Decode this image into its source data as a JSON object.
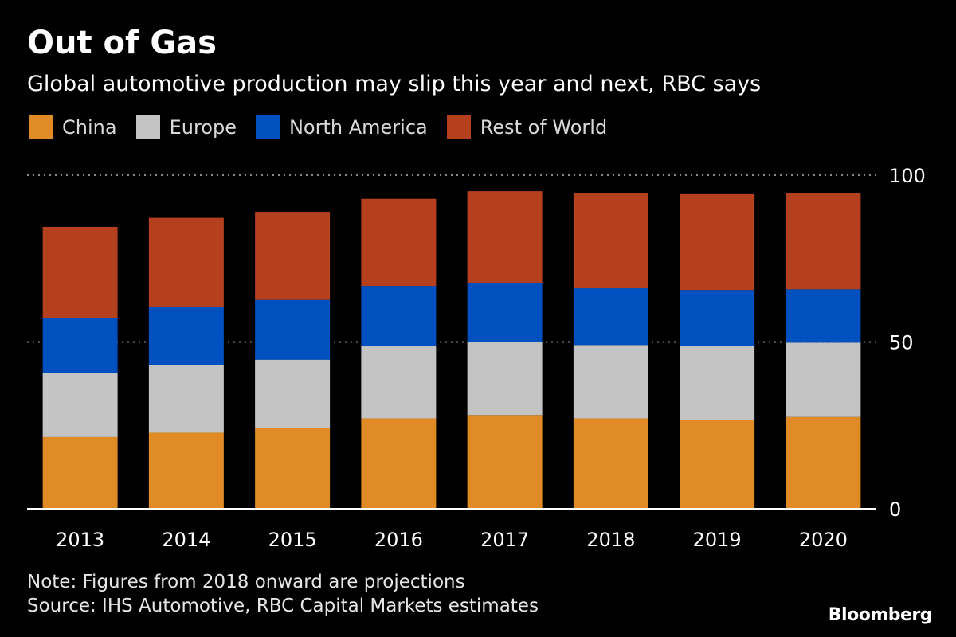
{
  "header": {
    "title": "Out of Gas",
    "subtitle": "Global automotive production may slip this year and next, RBC says"
  },
  "legend": [
    {
      "label": "China",
      "color": "#e08b26"
    },
    {
      "label": "Europe",
      "color": "#c4c4c4"
    },
    {
      "label": "North America",
      "color": "#0050c0"
    },
    {
      "label": "Rest of World",
      "color": "#b5401e"
    }
  ],
  "footer": {
    "note": "Note: Figures from 2018 onward are projections",
    "source": "Source: IHS Automotive, RBC Capital Markets estimates",
    "brand": "Bloomberg"
  },
  "chart_data": {
    "type": "bar",
    "stacked": true,
    "categories": [
      "2013",
      "2014",
      "2015",
      "2016",
      "2017",
      "2018",
      "2019",
      "2020"
    ],
    "series": [
      {
        "name": "China",
        "color": "#e08b26",
        "values": [
          21.5,
          22.8,
          24.2,
          27.1,
          28.1,
          27.1,
          26.7,
          27.5
        ]
      },
      {
        "name": "Europe",
        "color": "#c4c4c4",
        "values": [
          19.3,
          20.3,
          20.5,
          21.6,
          21.9,
          22.0,
          22.1,
          22.3
        ]
      },
      {
        "name": "North America",
        "color": "#0050c0",
        "values": [
          16.4,
          17.3,
          17.9,
          18.1,
          17.6,
          17.0,
          16.8,
          16.0
        ]
      },
      {
        "name": "Rest of World",
        "color": "#b5401e",
        "values": [
          27.3,
          26.8,
          26.4,
          26.1,
          27.6,
          28.6,
          28.7,
          28.8
        ]
      }
    ],
    "yticks": [
      0,
      50,
      100
    ],
    "ylim": [
      0,
      100
    ],
    "axis_side": "right",
    "grid": true,
    "legend_position": "top-left"
  }
}
